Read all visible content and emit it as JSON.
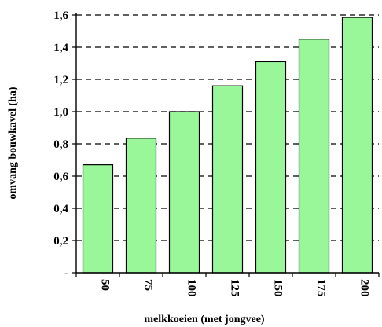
{
  "chart_data": {
    "type": "bar",
    "categories": [
      "50",
      "75",
      "100",
      "125",
      "150",
      "175",
      "200"
    ],
    "values": [
      0.67,
      0.835,
      1.0,
      1.16,
      1.31,
      1.45,
      1.585
    ],
    "xlabel": "melkkoeien (met jongvee)",
    "ylabel": "omvang bouwkavel (ha)",
    "ylim": [
      0,
      1.6
    ],
    "yticks": [
      0,
      0.2,
      0.4,
      0.6,
      0.8,
      1.0,
      1.2,
      1.4,
      1.6
    ],
    "ytick_labels": [
      "-",
      "0,2",
      "0,4",
      "0,6",
      "0,8",
      "1,0",
      "1,2",
      "1,4",
      "1,6"
    ],
    "grid": true,
    "colors": {
      "bar_fill": "#99f699",
      "bar_stroke": "#000000",
      "grid": "#000000"
    }
  }
}
